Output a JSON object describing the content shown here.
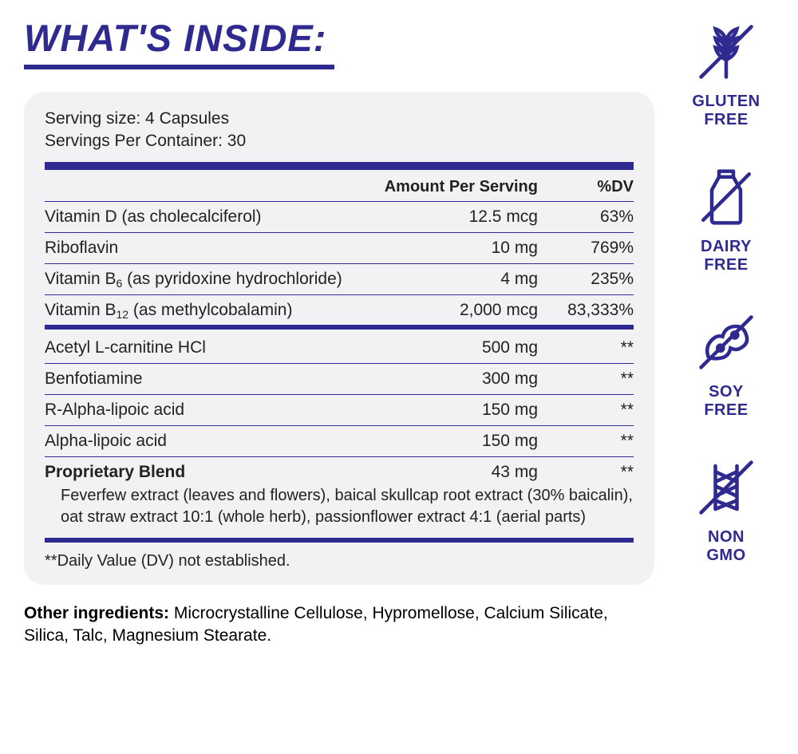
{
  "title": "WHAT'S INSIDE:",
  "accent_color": "#2f2a8f",
  "panel_bg": "#f2f2f4",
  "serving": {
    "size_label": "Serving size: 4 Capsules",
    "per_container_label": "Servings Per Container: 30"
  },
  "headers": {
    "amount": "Amount Per Serving",
    "dv": "%DV"
  },
  "section1": [
    {
      "name_html": "Vitamin D (as cholecalciferol)",
      "amount": "12.5 mcg",
      "dv": "63%"
    },
    {
      "name_html": "Riboflavin",
      "amount": "10 mg",
      "dv": "769%"
    },
    {
      "name_html": "Vitamin B<sub>6</sub> (as pyridoxine hydrochloride)",
      "amount": "4 mg",
      "dv": "235%"
    },
    {
      "name_html": "Vitamin B<sub>12</sub> (as methylcobalamin)",
      "amount": "2,000 mcg",
      "dv": "83,333%"
    }
  ],
  "section2": [
    {
      "name_html": "Acetyl L-carnitine HCl",
      "amount": "500 mg",
      "dv": "**"
    },
    {
      "name_html": "Benfotiamine",
      "amount": "300 mg",
      "dv": "**"
    },
    {
      "name_html": "R-Alpha-lipoic acid",
      "amount": "150 mg",
      "dv": "**"
    },
    {
      "name_html": "Alpha-lipoic acid",
      "amount": "150 mg",
      "dv": "**"
    }
  ],
  "blend": {
    "name": "Proprietary Blend",
    "amount": "43 mg",
    "dv": "**",
    "detail": "Feverfew extract (leaves and flowers), baical skullcap root extract (30% baicalin), oat straw extract 10:1 (whole herb), passionflower extract 4:1 (aerial parts)"
  },
  "footnote": "**Daily Value (DV) not established.",
  "other_label": "Other ingredients:",
  "other_text": " Microcrystalline Cellulose, Hypromellose, Calcium Silicate, Silica, Talc, Magnesium Stearate.",
  "badges": [
    {
      "id": "gluten-free-icon",
      "label": "GLUTEN\nFREE"
    },
    {
      "id": "dairy-free-icon",
      "label": "DAIRY\nFREE"
    },
    {
      "id": "soy-free-icon",
      "label": "SOY\nFREE"
    },
    {
      "id": "non-gmo-icon",
      "label": "NON\nGMO"
    }
  ]
}
